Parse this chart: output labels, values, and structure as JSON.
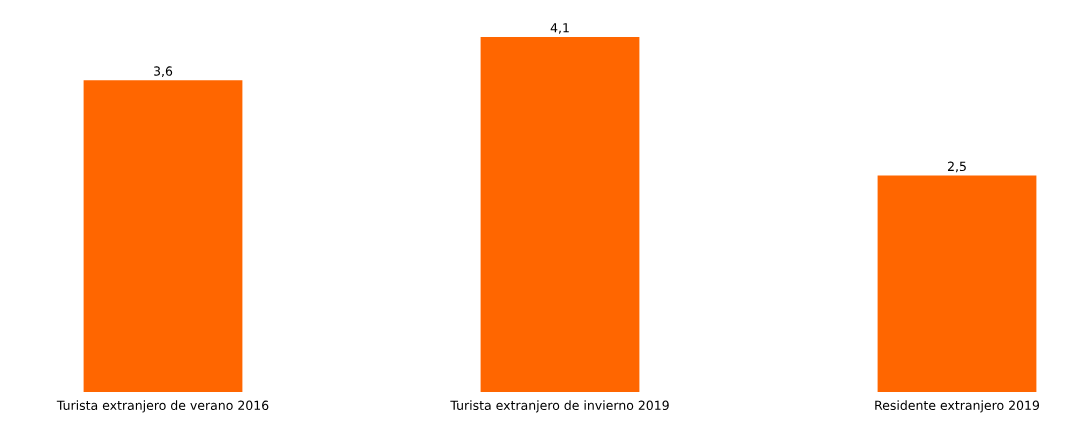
{
  "chart_data": {
    "type": "bar",
    "categories": [
      "Turista extranjero de verano 2016",
      "Turista extranjero de invierno 2019",
      "Residente extranjero 2019"
    ],
    "values": [
      3.6,
      4.1,
      2.5
    ],
    "value_labels": [
      "3,6",
      "4,1",
      "2,5"
    ],
    "color": "#ff6600"
  }
}
